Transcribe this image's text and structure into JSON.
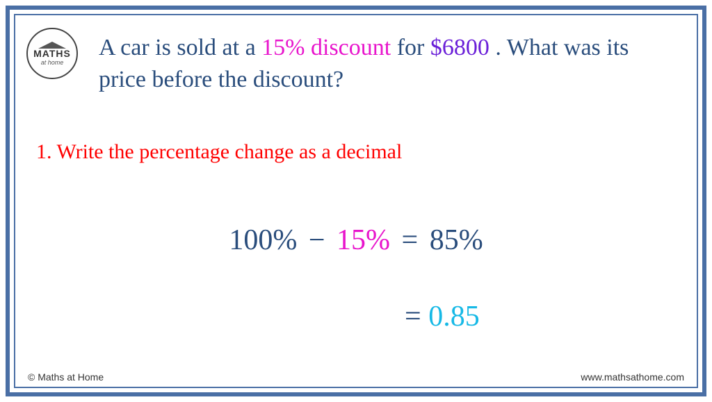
{
  "logo": {
    "line1": "MATHS",
    "line2": "at home"
  },
  "colors": {
    "border": "#4a6fa5",
    "body_text": "#2a4d7c",
    "discount_highlight": "#e815cc",
    "price_highlight": "#6a1fd8",
    "step_title": "#ff0000",
    "decimal_result": "#17b9e6",
    "background": "#ffffff"
  },
  "typography": {
    "question_fontsize": 34,
    "step_fontsize": 30,
    "equation_fontsize": 42,
    "footer_fontsize": 14
  },
  "question": {
    "part1": "A car is sold at a ",
    "discount": "15% discount",
    "part2": " for ",
    "price": "$6800",
    "part3": " . What was its price before the discount?"
  },
  "step": {
    "number": "1.",
    "text": "Write the percentage change as a decimal"
  },
  "equation": {
    "v100": "100%",
    "minus": "−",
    "v15": "15%",
    "equals": "=",
    "v85": "85%",
    "decimal": "0.85"
  },
  "footer": {
    "left": "© Maths at Home",
    "right": "www.mathsathome.com"
  }
}
